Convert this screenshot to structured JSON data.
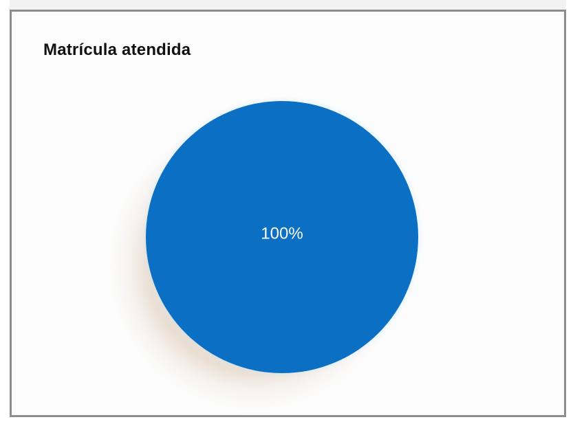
{
  "chart_data": {
    "type": "pie",
    "title": "Matrícula atendida",
    "slices": [
      {
        "value": 100,
        "label": "100%",
        "color": "#0b6fc4"
      }
    ]
  }
}
